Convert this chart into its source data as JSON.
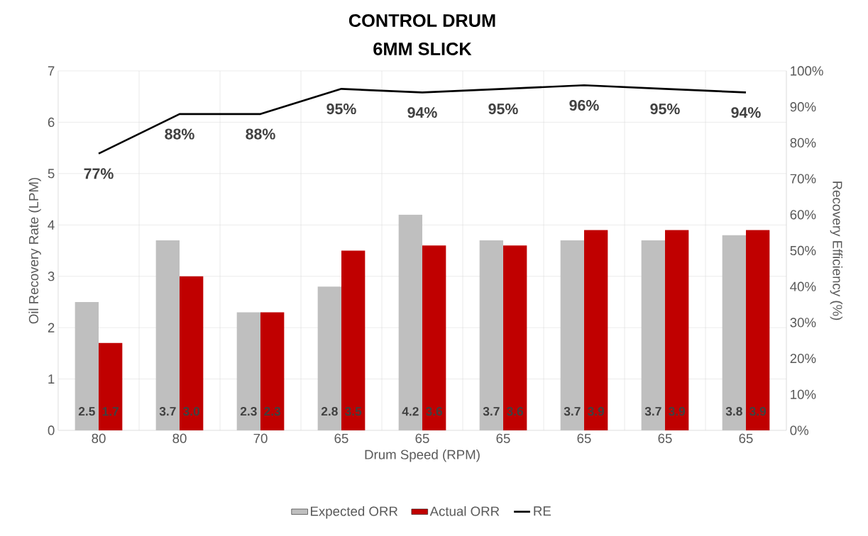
{
  "chart_data": {
    "type": "bar",
    "title": "CONTROL DRUM",
    "subtitle": "6MM SLICK",
    "xlabel": "Drum Speed (RPM)",
    "ylabel": "Oil Recovery Rate (LPM)",
    "y2label": "Recovery Efficiency (%)",
    "categories": [
      "80",
      "80",
      "70",
      "65",
      "65",
      "65",
      "65",
      "65",
      "65"
    ],
    "series": [
      {
        "name": "Expected ORR",
        "color": "#bfbfbf",
        "values": [
          2.5,
          3.7,
          2.3,
          2.8,
          4.2,
          3.7,
          3.7,
          3.7,
          3.8
        ],
        "value_labels": [
          "2.5",
          "3.7",
          "2.3",
          "2.8",
          "4.2",
          "3.7",
          "3.7",
          "3.7",
          "3.8"
        ]
      },
      {
        "name": "Actual ORR",
        "color": "#c00000",
        "values": [
          1.7,
          3.0,
          2.3,
          3.5,
          3.6,
          3.6,
          3.9,
          3.9,
          3.9
        ],
        "value_labels": [
          "1.7",
          "3.0",
          "2.3",
          "3.5",
          "3.6",
          "3.6",
          "3.9",
          "3.9",
          "3.9"
        ]
      },
      {
        "name": "RE",
        "type": "line",
        "axis": "y2",
        "color": "#000000",
        "values": [
          77,
          88,
          88,
          95,
          94,
          95,
          96,
          95,
          94
        ],
        "value_labels": [
          "77%",
          "88%",
          "88%",
          "95%",
          "94%",
          "95%",
          "96%",
          "95%",
          "94%"
        ]
      }
    ],
    "ylim": [
      0,
      7
    ],
    "yticks": [
      0,
      1,
      2,
      3,
      4,
      5,
      6,
      7
    ],
    "y2lim": [
      0,
      100
    ],
    "y2ticks": [
      {
        "value": 0,
        "label": "0%"
      },
      {
        "value": 10,
        "label": "10%"
      },
      {
        "value": 20,
        "label": "20%"
      },
      {
        "value": 30,
        "label": "30%"
      },
      {
        "value": 40,
        "label": "40%"
      },
      {
        "value": 50,
        "label": "50%"
      },
      {
        "value": 60,
        "label": "60%"
      },
      {
        "value": 70,
        "label": "70%"
      },
      {
        "value": 80,
        "label": "80%"
      },
      {
        "value": 90,
        "label": "90%"
      },
      {
        "value": 100,
        "label": "100%"
      }
    ],
    "grid": true,
    "legend": "bottom",
    "marker": "none",
    "line_style": "solid"
  }
}
